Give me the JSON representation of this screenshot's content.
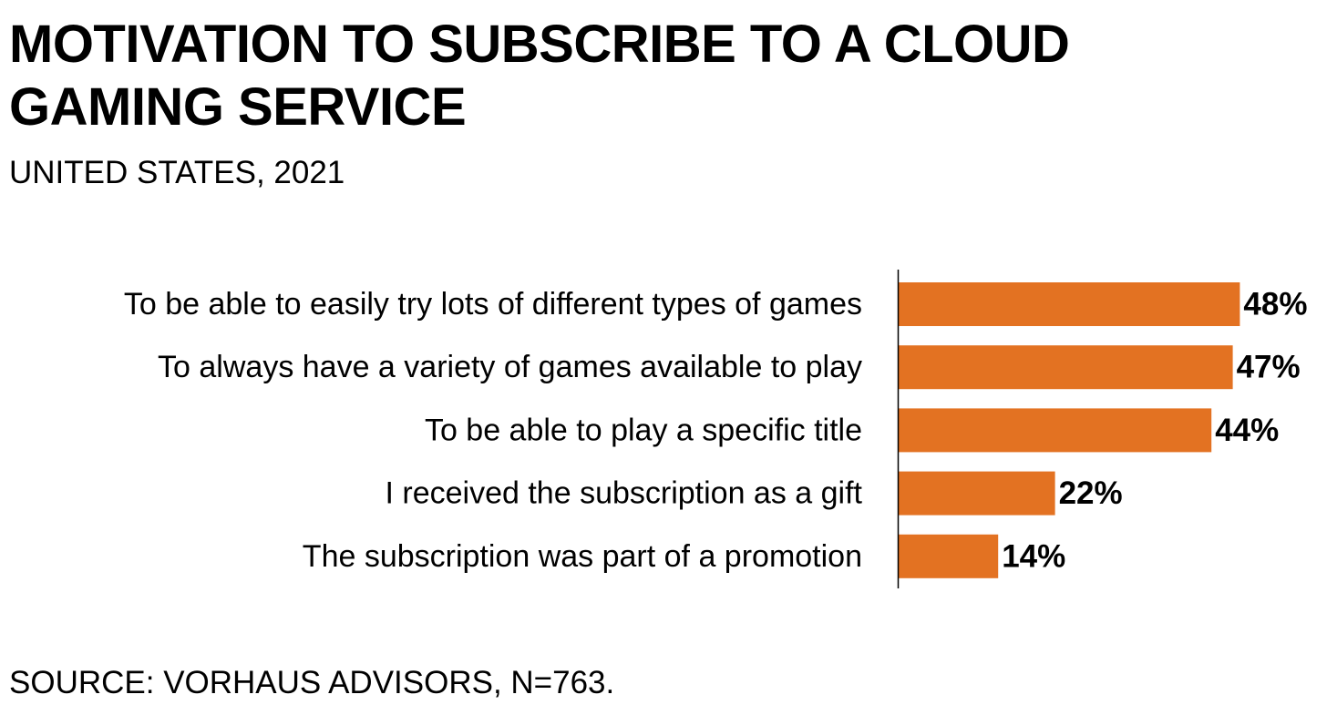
{
  "header": {
    "title": "MOTIVATION TO SUBSCRIBE TO A CLOUD GAMING SERVICE",
    "subtitle": "UNITED STATES, 2021"
  },
  "footer": {
    "source": "SOURCE: VORHAUS ADVISORS, N=763."
  },
  "colors": {
    "bar": "#E37222",
    "axis": "#000000",
    "text": "#000000"
  },
  "chart_data": {
    "type": "bar",
    "orientation": "horizontal",
    "title": "MOTIVATION TO SUBSCRIBE TO A CLOUD GAMING SERVICE",
    "subtitle": "UNITED STATES, 2021",
    "categories": [
      "To be able to easily try lots of different types of games",
      "To always have a variety of games available to play",
      "To be able to play a specific title",
      "I received the subscription as a gift",
      "The subscription was part of a promotion"
    ],
    "values": [
      48,
      47,
      44,
      22,
      14
    ],
    "value_labels": [
      "48%",
      "47%",
      "44%",
      "22%",
      "14%"
    ],
    "unit": "%",
    "xlim": [
      0,
      48
    ],
    "grid": false,
    "legend": "none"
  }
}
